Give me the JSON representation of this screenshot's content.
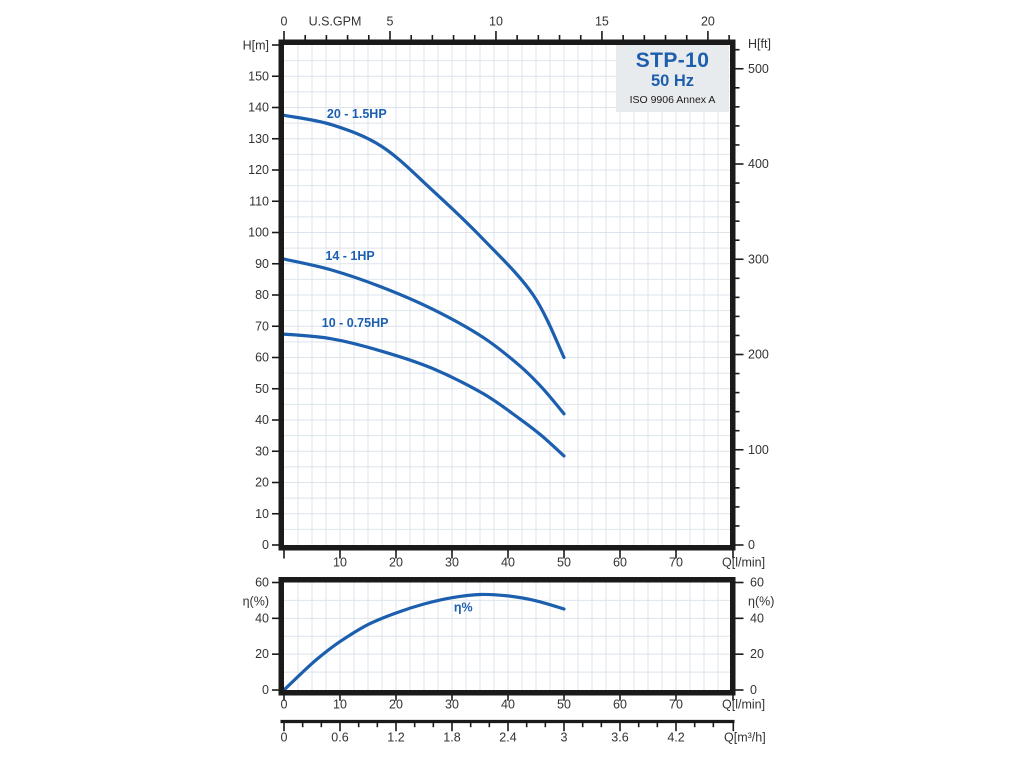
{
  "title_box": {
    "model": "STP-10",
    "frequency": "50 Hz",
    "standard": "ISO 9906 Annex A"
  },
  "colors": {
    "curve": "#1c5fae",
    "curve_label": "#1d64b5",
    "title_blue": "#1d5fad",
    "grid": "#dde4ec",
    "frame": "#1a1a1a",
    "tick_text": "#333333",
    "title_box_bg": "#e8ebee"
  },
  "chart_data": [
    {
      "id": "head-chart",
      "type": "line",
      "title": "STP-10 50 Hz pump head curves",
      "x_axis_bottom": {
        "label": "Q[l/min]",
        "range": [
          0,
          79.6
        ],
        "labeled_ticks": [
          10,
          20,
          30,
          40,
          50,
          60,
          70
        ]
      },
      "x_axis_top": {
        "label": "U.S.GPM",
        "labeled_ticks": [
          0,
          5,
          10,
          15,
          20
        ],
        "minor_step": 1,
        "lmin_per_gpm": 3.785,
        "max_tick": 21
      },
      "y_axis_left": {
        "label": "H[m]",
        "range": [
          0,
          160
        ],
        "tick_step": 10,
        "labeled_ticks": [
          0,
          10,
          20,
          30,
          40,
          50,
          60,
          70,
          80,
          90,
          100,
          110,
          120,
          130,
          140,
          150
        ]
      },
      "y_axis_right": {
        "label": "H[ft]",
        "labeled_ticks": [
          0,
          100,
          200,
          300,
          400,
          500
        ],
        "minor_step": 20,
        "max_minor": 520
      },
      "grid": {
        "x_step": 2.5,
        "y_step": 5
      },
      "legend_position": "on-curve",
      "series": [
        {
          "name": "20 - 1.5HP",
          "label_at": [
            13,
            138
          ],
          "points": [
            [
              0,
              137.5
            ],
            [
              8.5,
              134.5
            ],
            [
              17.5,
              127.5
            ],
            [
              26.5,
              113.5
            ],
            [
              35.5,
              98
            ],
            [
              44.5,
              80
            ],
            [
              50,
              60
            ]
          ]
        },
        {
          "name": "14 - 1HP",
          "label_at": [
            11.8,
            92.5
          ],
          "points": [
            [
              0,
              91.5
            ],
            [
              8.5,
              88
            ],
            [
              17.5,
              82.5
            ],
            [
              26.5,
              75.5
            ],
            [
              35.5,
              66.5
            ],
            [
              42,
              57.5
            ],
            [
              46,
              50.5
            ],
            [
              50,
              42
            ]
          ]
        },
        {
          "name": "10 - 0.75HP",
          "label_at": [
            12.7,
            71
          ],
          "points": [
            [
              0,
              67.5
            ],
            [
              8.5,
              66
            ],
            [
              17.5,
              62
            ],
            [
              26.5,
              56.5
            ],
            [
              35.5,
              48.5
            ],
            [
              42,
              40.5
            ],
            [
              46,
              35
            ],
            [
              50,
              28.5
            ]
          ]
        }
      ]
    },
    {
      "id": "efficiency-chart",
      "type": "line",
      "title": "Efficiency curve",
      "y_axis_left": {
        "label": "η(%)",
        "range": [
          0,
          60
        ],
        "labeled_ticks": [
          0,
          20,
          40,
          60
        ]
      },
      "y_axis_right": {
        "label": "η(%)",
        "labeled_ticks": [
          0,
          20,
          40,
          60
        ]
      },
      "x_axis_bottom": {
        "label": "Q[l/min]",
        "labeled_ticks": [
          0,
          10,
          20,
          30,
          40,
          50,
          60,
          70
        ]
      },
      "grid": {
        "x_step": 2.5,
        "y_step": 10
      },
      "series": [
        {
          "name": "η%",
          "label_at": [
            32,
            46
          ],
          "points": [
            [
              0,
              0
            ],
            [
              3,
              9
            ],
            [
              6,
              17.5
            ],
            [
              10,
              27
            ],
            [
              15,
              36.5
            ],
            [
              20,
              43
            ],
            [
              25,
              48
            ],
            [
              30,
              51.5
            ],
            [
              35,
              53.3
            ],
            [
              40,
              52.5
            ],
            [
              45,
              49.8
            ],
            [
              50,
              45.2
            ]
          ]
        }
      ]
    },
    {
      "id": "flow-conversion-scale",
      "type": "axis-scale",
      "label": "Q[m³/h]",
      "labeled_ticks": [
        "0",
        "0.6",
        "1.2",
        "1.8",
        "2.4",
        "3",
        "3.6",
        "4.2"
      ],
      "tick_values": [
        0,
        0.6,
        1.2,
        1.8,
        2.4,
        3,
        3.6,
        4.2
      ],
      "minor_step": 0.2,
      "lmin_per_m3h": 16.667
    }
  ]
}
